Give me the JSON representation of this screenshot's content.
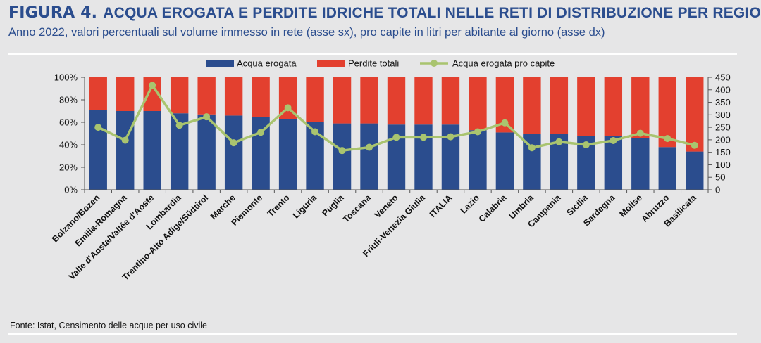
{
  "figure_label": "FIGURA 4.",
  "title": "ACQUA EROGATA E PERDITE IDRICHE TOTALI NELLE RETI DI DISTRIBUZIONE PER REGIONE.",
  "subtitle": "Anno 2022, valori percentuali sul volume immesso in rete (asse sx), pro capite in litri per abitante al giorno (asse dx)",
  "source": "Fonte: Istat, Censimento delle acque per uso civile",
  "colors": {
    "erogata": "#2b4d8e",
    "perdite": "#e3402f",
    "procapite": "#a9c46f",
    "title": "#2b4d8e"
  },
  "chart_data": {
    "type": "bar",
    "stacked": true,
    "categories": [
      "Bolzano/Bozen",
      "Emilia-Romagna",
      "Valle d'Aosta/Vallée d'Aoste",
      "Lombardia",
      "Trentino-Alto Adige/Südtirol",
      "Marche",
      "Piemonte",
      "Trento",
      "Liguria",
      "Puglia",
      "Toscana",
      "Veneto",
      "Friuli-Venezia Giulia",
      "ITALIA",
      "Lazio",
      "Calabria",
      "Umbria",
      "Campania",
      "Sicilia",
      "Sardegna",
      "Molise",
      "Abruzzo",
      "Basilicata"
    ],
    "series": [
      {
        "name": "Acqua erogata",
        "axis": "left",
        "kind": "bar",
        "values": [
          71,
          70,
          70,
          68,
          67,
          66,
          65,
          63,
          60,
          59,
          59,
          58,
          58,
          58,
          53,
          51,
          50,
          50,
          48,
          48,
          46,
          38,
          34
        ]
      },
      {
        "name": "Perdite totali",
        "axis": "left",
        "kind": "bar",
        "values": [
          29,
          30,
          30,
          32,
          33,
          34,
          35,
          37,
          40,
          41,
          41,
          42,
          42,
          42,
          47,
          49,
          50,
          50,
          52,
          52,
          54,
          62,
          66
        ]
      },
      {
        "name": "Acqua erogata pro capite",
        "axis": "right",
        "kind": "line",
        "values": [
          250,
          198,
          418,
          258,
          292,
          188,
          230,
          328,
          232,
          157,
          170,
          210,
          210,
          212,
          232,
          268,
          168,
          192,
          180,
          197,
          226,
          205,
          178
        ]
      }
    ],
    "y_left": {
      "min": 0,
      "max": 100,
      "ticks": [
        "0%",
        "20%",
        "40%",
        "60%",
        "80%",
        "100%"
      ],
      "tick_values": [
        0,
        20,
        40,
        60,
        80,
        100
      ]
    },
    "y_right": {
      "min": 0,
      "max": 450,
      "ticks": [
        "0",
        "50",
        "100",
        "150",
        "200",
        "250",
        "300",
        "350",
        "400",
        "450"
      ],
      "tick_values": [
        0,
        50,
        100,
        150,
        200,
        250,
        300,
        350,
        400,
        450
      ]
    },
    "legend_position": "top-center",
    "grid": false
  }
}
